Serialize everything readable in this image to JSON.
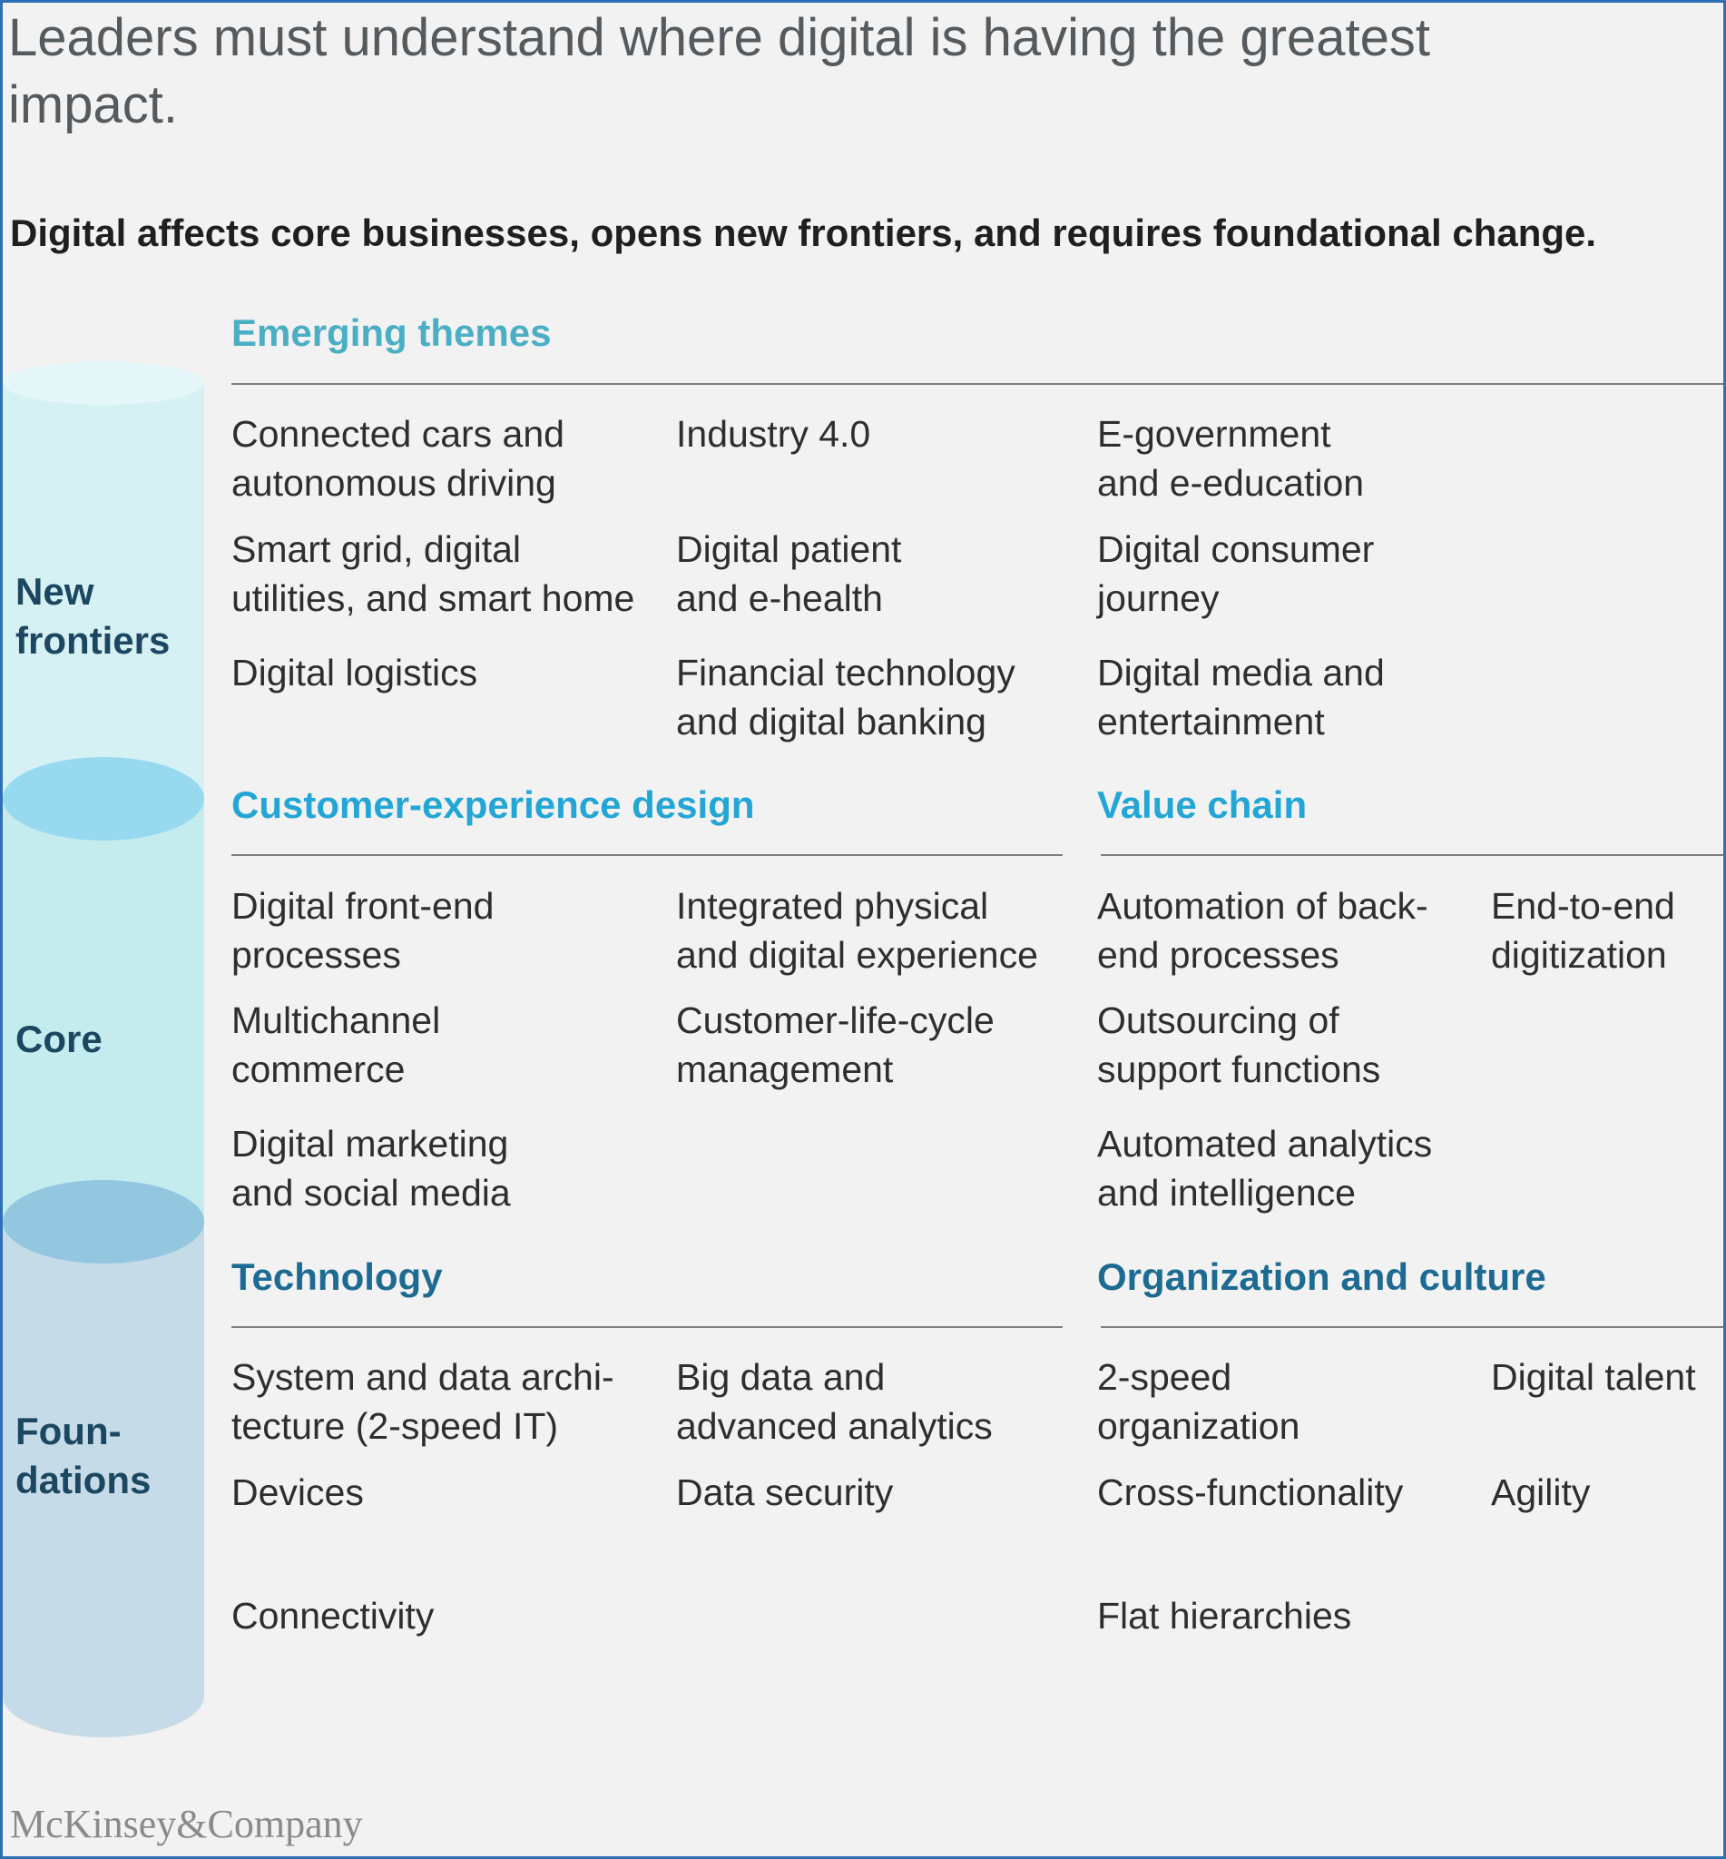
{
  "title": "Leaders must understand where digital is having the greatest impact.",
  "subtitle": "Digital affects core businesses, opens new frontiers, and requires foundational change.",
  "layers": {
    "new_frontiers": "New\nfrontiers",
    "core": "Core",
    "foundations": "Foun-\ndations"
  },
  "sections": {
    "emerging": {
      "heading": "Emerging themes",
      "color": "#4aaec4",
      "items": [
        "Connected cars and\nautonomous driving",
        "Industry 4.0",
        "E-government\nand e-education",
        "Smart grid, digital\nutilities, and smart home",
        "Digital patient\nand e-health",
        "Digital consumer\njourney",
        "Digital logistics",
        "Financial technology\nand digital banking",
        "Digital media and\nentertainment"
      ]
    },
    "cx": {
      "heading": "Customer-experience design",
      "color": "#23a6d5",
      "items": [
        "Digital front-end\nprocesses",
        "Integrated physical\nand digital experience",
        "Multichannel\ncommerce",
        "Customer-life-cycle\nmanagement",
        "Digital marketing\nand social media"
      ]
    },
    "value_chain": {
      "heading": "Value chain",
      "color": "#23a6d5",
      "items": [
        "Automation of back-\nend processes",
        "End-to-end\ndigitization",
        "Outsourcing of\nsupport functions",
        "Automated analytics\nand intelligence"
      ]
    },
    "technology": {
      "heading": "Technology",
      "color": "#1d6a92",
      "items": [
        "System and data archi-\ntecture (2-speed IT)",
        "Big data and\nadvanced analytics",
        "Devices",
        "Data security",
        "Connectivity"
      ]
    },
    "org": {
      "heading": "Organization and culture",
      "color": "#1d6a92",
      "items": [
        "2-speed\norganization",
        "Digital talent",
        "Cross-functionality",
        "Agility",
        "Flat hierarchies"
      ]
    }
  },
  "footer": "McKinsey&Company"
}
